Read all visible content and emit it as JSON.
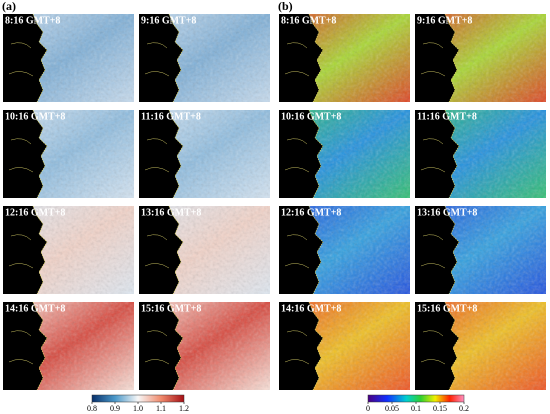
{
  "panels": {
    "a": {
      "label": "(a)",
      "times": [
        "8:16 GMT+8",
        "9:16 GMT+8",
        "10:16 GMT+8",
        "11:16 GMT+8",
        "12:16 GMT+8",
        "13:16 GMT+8",
        "14:16 GMT+8",
        "15:16 GMT+8"
      ],
      "colorbar": {
        "lim": [
          0.8,
          1.2
        ],
        "ticks": [
          0.8,
          0.9,
          {
            "value": 1,
            "label": "1.0"
          },
          1.1,
          1.2
        ]
      }
    },
    "b": {
      "label": "(b)",
      "times": [
        "8:16 GMT+8",
        "9:16 GMT+8",
        "10:16 GMT+8",
        "11:16 GMT+8",
        "12:16 GMT+8",
        "13:16 GMT+8",
        "14:16 GMT+8",
        "15:16 GMT+8"
      ],
      "colorbar": {
        "lim": [
          0,
          0.2
        ],
        "ticks": [
          0,
          0.05,
          0.1,
          0.15,
          0.2
        ]
      }
    }
  }
}
